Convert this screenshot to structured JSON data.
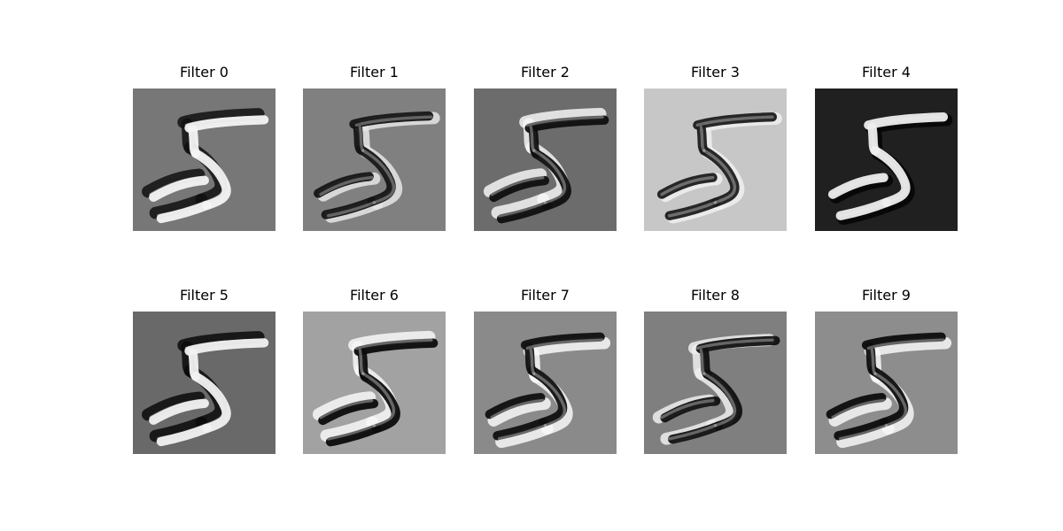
{
  "figure": {
    "panels": [
      {
        "title": "Filter 0",
        "background": "#777777",
        "highlight": "#f4f4f4",
        "shadow": "#101010",
        "emphasis": "mixed"
      },
      {
        "title": "Filter 1",
        "background": "#808080",
        "highlight": "#e6e6e6",
        "shadow": "#151515",
        "emphasis": "left-edge"
      },
      {
        "title": "Filter 2",
        "background": "#6c6c6c",
        "highlight": "#f4f4f4",
        "shadow": "#101010",
        "emphasis": "bottom-edge"
      },
      {
        "title": "Filter 3",
        "background": "#c7c7c7",
        "highlight": "#f0f0f0",
        "shadow": "#1c1c1c",
        "emphasis": "dark-stroke"
      },
      {
        "title": "Filter 4",
        "background": "#202020",
        "highlight": "#eeeeee",
        "shadow": "#050505",
        "emphasis": "bright-stroke"
      },
      {
        "title": "Filter 5",
        "background": "#696969",
        "highlight": "#f2f2f2",
        "shadow": "#0b0b0b",
        "emphasis": "mixed"
      },
      {
        "title": "Filter 6",
        "background": "#a2a2a2",
        "highlight": "#f8f8f8",
        "shadow": "#0c0c0c",
        "emphasis": "bottom-edge"
      },
      {
        "title": "Filter 7",
        "background": "#8a8a8a",
        "highlight": "#f8f8f8",
        "shadow": "#101010",
        "emphasis": "top-edge"
      },
      {
        "title": "Filter 8",
        "background": "#7f7f7f",
        "highlight": "#eeeeee",
        "shadow": "#111111",
        "emphasis": "right-edge"
      },
      {
        "title": "Filter 9",
        "background": "#8d8d8d",
        "highlight": "#f7f7f7",
        "shadow": "#0d0d0d",
        "emphasis": "top-edge"
      }
    ]
  }
}
